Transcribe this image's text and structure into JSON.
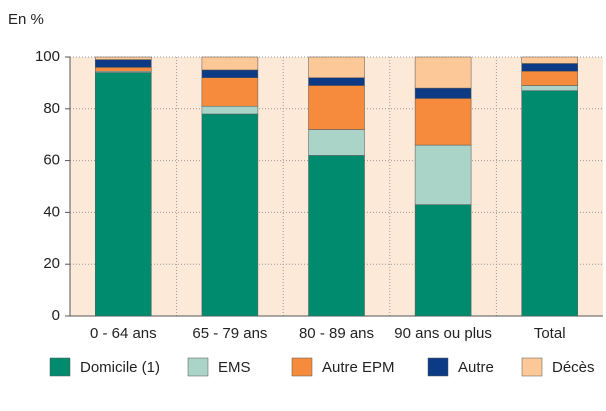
{
  "chart_data": {
    "type": "stacked_bar",
    "y_label": "En %",
    "categories": [
      "0 - 64 ans",
      "65 - 79 ans",
      "80 - 89 ans",
      "90 ans ou plus",
      "Total"
    ],
    "series": [
      {
        "name": "Domicile (1)",
        "color": "#008b6f",
        "values": [
          94,
          78,
          62,
          43,
          87
        ]
      },
      {
        "name": "EMS",
        "color": "#a9d4c7",
        "values": [
          0.5,
          3,
          10,
          23,
          2
        ]
      },
      {
        "name": "Autre EPM",
        "color": "#f68b3d",
        "values": [
          1.5,
          11,
          17,
          18,
          5.5
        ]
      },
      {
        "name": "Autre",
        "color": "#0d3a84",
        "values": [
          3,
          3,
          3,
          4,
          3
        ]
      },
      {
        "name": "Décès",
        "color": "#fcc897",
        "values": [
          1,
          5,
          8,
          12,
          2.5
        ]
      }
    ],
    "ylim": [
      0,
      100
    ],
    "yticks": [
      0,
      20,
      40,
      60,
      80,
      100
    ],
    "grid": true
  }
}
